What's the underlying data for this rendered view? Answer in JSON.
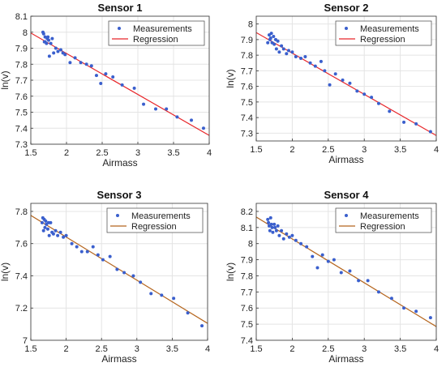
{
  "chart_data": [
    {
      "type": "scatter",
      "title": "Sensor 1",
      "xlabel": "Airmass",
      "ylabel": "ln(v)",
      "xlim": [
        1.5,
        4
      ],
      "ylim": [
        7.3,
        8.1
      ],
      "xticks": [
        "1.5",
        "2",
        "2.5",
        "3",
        "3.5",
        "4"
      ],
      "yticks": [
        "7.3",
        "7.4",
        "7.5",
        "7.6",
        "7.7",
        "7.8",
        "7.9",
        "8",
        "8.1"
      ],
      "grid": true,
      "legend": {
        "placement": "top-right",
        "entries": [
          "Measurements",
          "Regression"
        ]
      },
      "series": [
        {
          "name": "Measurements",
          "kind": "points",
          "color": "#3a5fcd",
          "x": [
            1.67,
            1.68,
            1.69,
            1.7,
            1.7,
            1.72,
            1.73,
            1.74,
            1.75,
            1.76,
            1.78,
            1.8,
            1.82,
            1.85,
            1.88,
            1.92,
            1.95,
            1.98,
            2.05,
            2.12,
            2.2,
            2.28,
            2.35,
            2.42,
            2.48,
            2.55,
            2.65,
            2.78,
            2.95,
            3.08,
            3.25,
            3.4,
            3.55,
            3.75,
            3.92
          ],
          "y": [
            8.0,
            7.99,
            7.94,
            7.97,
            7.94,
            7.93,
            7.96,
            7.97,
            7.95,
            7.85,
            7.93,
            7.96,
            7.87,
            7.9,
            7.88,
            7.89,
            7.87,
            7.86,
            7.81,
            7.84,
            7.81,
            7.8,
            7.79,
            7.73,
            7.68,
            7.74,
            7.72,
            7.67,
            7.65,
            7.55,
            7.52,
            7.52,
            7.47,
            7.45,
            7.4
          ]
        },
        {
          "name": "Regression",
          "kind": "line",
          "color": "#e8262a",
          "x": [
            1.5,
            4
          ],
          "y": [
            7.995,
            7.355
          ]
        }
      ]
    },
    {
      "type": "scatter",
      "title": "Sensor 2",
      "xlabel": "Airmass",
      "ylabel": "ln(v)",
      "xlim": [
        1.5,
        4
      ],
      "ylim": [
        7.25,
        8.05
      ],
      "xticks": [
        "1.5",
        "2",
        "2.5",
        "3",
        "3.5",
        "4"
      ],
      "yticks": [
        "7.3",
        "7.4",
        "7.5",
        "7.6",
        "7.7",
        "7.8",
        "7.9",
        "8"
      ],
      "grid": true,
      "legend": {
        "placement": "top-right",
        "entries": [
          "Measurements",
          "Regression"
        ]
      },
      "series": [
        {
          "name": "Measurements",
          "kind": "points",
          "color": "#3a5fcd",
          "x": [
            1.66,
            1.68,
            1.69,
            1.7,
            1.71,
            1.72,
            1.74,
            1.75,
            1.77,
            1.78,
            1.8,
            1.82,
            1.85,
            1.88,
            1.92,
            1.95,
            2.0,
            2.05,
            2.12,
            2.18,
            2.25,
            2.32,
            2.4,
            2.45,
            2.52,
            2.6,
            2.7,
            2.8,
            2.9,
            3.0,
            3.1,
            3.2,
            3.35,
            3.55,
            3.72,
            3.92
          ],
          "y": [
            7.88,
            7.93,
            7.9,
            7.91,
            7.94,
            7.88,
            7.92,
            7.87,
            7.9,
            7.84,
            7.89,
            7.82,
            7.86,
            7.84,
            7.81,
            7.83,
            7.82,
            7.79,
            7.78,
            7.79,
            7.75,
            7.73,
            7.76,
            7.7,
            7.61,
            7.68,
            7.64,
            7.62,
            7.57,
            7.55,
            7.53,
            7.49,
            7.44,
            7.37,
            7.36,
            7.31
          ]
        },
        {
          "name": "Regression",
          "kind": "line",
          "color": "#e8262a",
          "x": [
            1.5,
            4
          ],
          "y": [
            7.945,
            7.285
          ]
        }
      ]
    },
    {
      "type": "scatter",
      "title": "Sensor 3",
      "xlabel": "Airmass",
      "ylabel": "ln(v)",
      "xlim": [
        1.5,
        4
      ],
      "ylim": [
        7.0,
        7.85
      ],
      "xticks": [
        "1.5",
        "2",
        "2.5",
        "3",
        "3.5",
        "4"
      ],
      "yticks": [
        "7",
        "7.2",
        "7.4",
        "7.6",
        "7.8"
      ],
      "grid": true,
      "legend": {
        "placement": "top-right",
        "entries": [
          "Measurements",
          "Regression"
        ]
      },
      "series": [
        {
          "name": "Measurements",
          "kind": "points",
          "color": "#3a5fcd",
          "x": [
            1.66,
            1.67,
            1.68,
            1.69,
            1.7,
            1.71,
            1.72,
            1.74,
            1.75,
            1.76,
            1.78,
            1.8,
            1.82,
            1.85,
            1.88,
            1.92,
            1.96,
            2.0,
            2.08,
            2.15,
            2.22,
            2.3,
            2.38,
            2.45,
            2.52,
            2.62,
            2.72,
            2.82,
            2.95,
            3.05,
            3.2,
            3.35,
            3.52,
            3.72,
            3.92
          ],
          "y": [
            7.73,
            7.76,
            7.68,
            7.75,
            7.7,
            7.74,
            7.72,
            7.69,
            7.73,
            7.65,
            7.73,
            7.67,
            7.66,
            7.68,
            7.65,
            7.67,
            7.64,
            7.65,
            7.6,
            7.58,
            7.55,
            7.55,
            7.58,
            7.53,
            7.5,
            7.52,
            7.44,
            7.42,
            7.4,
            7.36,
            7.29,
            7.28,
            7.26,
            7.17,
            7.09
          ]
        },
        {
          "name": "Regression",
          "kind": "line",
          "color": "#b5651d",
          "x": [
            1.5,
            4
          ],
          "y": [
            7.775,
            7.105
          ]
        }
      ]
    },
    {
      "type": "scatter",
      "title": "Sensor 4",
      "xlabel": "Airmass",
      "ylabel": "ln(v)",
      "xlim": [
        1.5,
        4
      ],
      "ylim": [
        7.4,
        8.25
      ],
      "xticks": [
        "1.5",
        "2",
        "2.5",
        "3",
        "3.5",
        "4"
      ],
      "yticks": [
        "7.4",
        "7.5",
        "7.6",
        "7.7",
        "7.8",
        "7.9",
        "8",
        "8.1",
        "8.2"
      ],
      "grid": true,
      "legend": {
        "placement": "top-right",
        "entries": [
          "Measurements",
          "Regression"
        ]
      },
      "series": [
        {
          "name": "Measurements",
          "kind": "points",
          "color": "#3a5fcd",
          "x": [
            1.66,
            1.67,
            1.68,
            1.69,
            1.7,
            1.71,
            1.72,
            1.73,
            1.75,
            1.76,
            1.78,
            1.8,
            1.82,
            1.85,
            1.88,
            1.92,
            1.96,
            2.0,
            2.05,
            2.12,
            2.2,
            2.28,
            2.35,
            2.42,
            2.5,
            2.58,
            2.68,
            2.8,
            2.92,
            3.05,
            3.2,
            3.38,
            3.55,
            3.72,
            3.92
          ],
          "y": [
            8.15,
            8.13,
            8.11,
            8.08,
            8.16,
            8.12,
            8.1,
            8.07,
            8.12,
            8.1,
            8.08,
            8.11,
            8.05,
            8.08,
            8.03,
            8.06,
            8.04,
            8.05,
            8.02,
            8.0,
            7.98,
            7.92,
            7.85,
            7.93,
            7.89,
            7.9,
            7.82,
            7.83,
            7.77,
            7.77,
            7.7,
            7.66,
            7.6,
            7.58,
            7.54
          ]
        },
        {
          "name": "Regression",
          "kind": "line",
          "color": "#b5651d",
          "x": [
            1.5,
            4
          ],
          "y": [
            8.165,
            7.485
          ]
        }
      ]
    }
  ]
}
